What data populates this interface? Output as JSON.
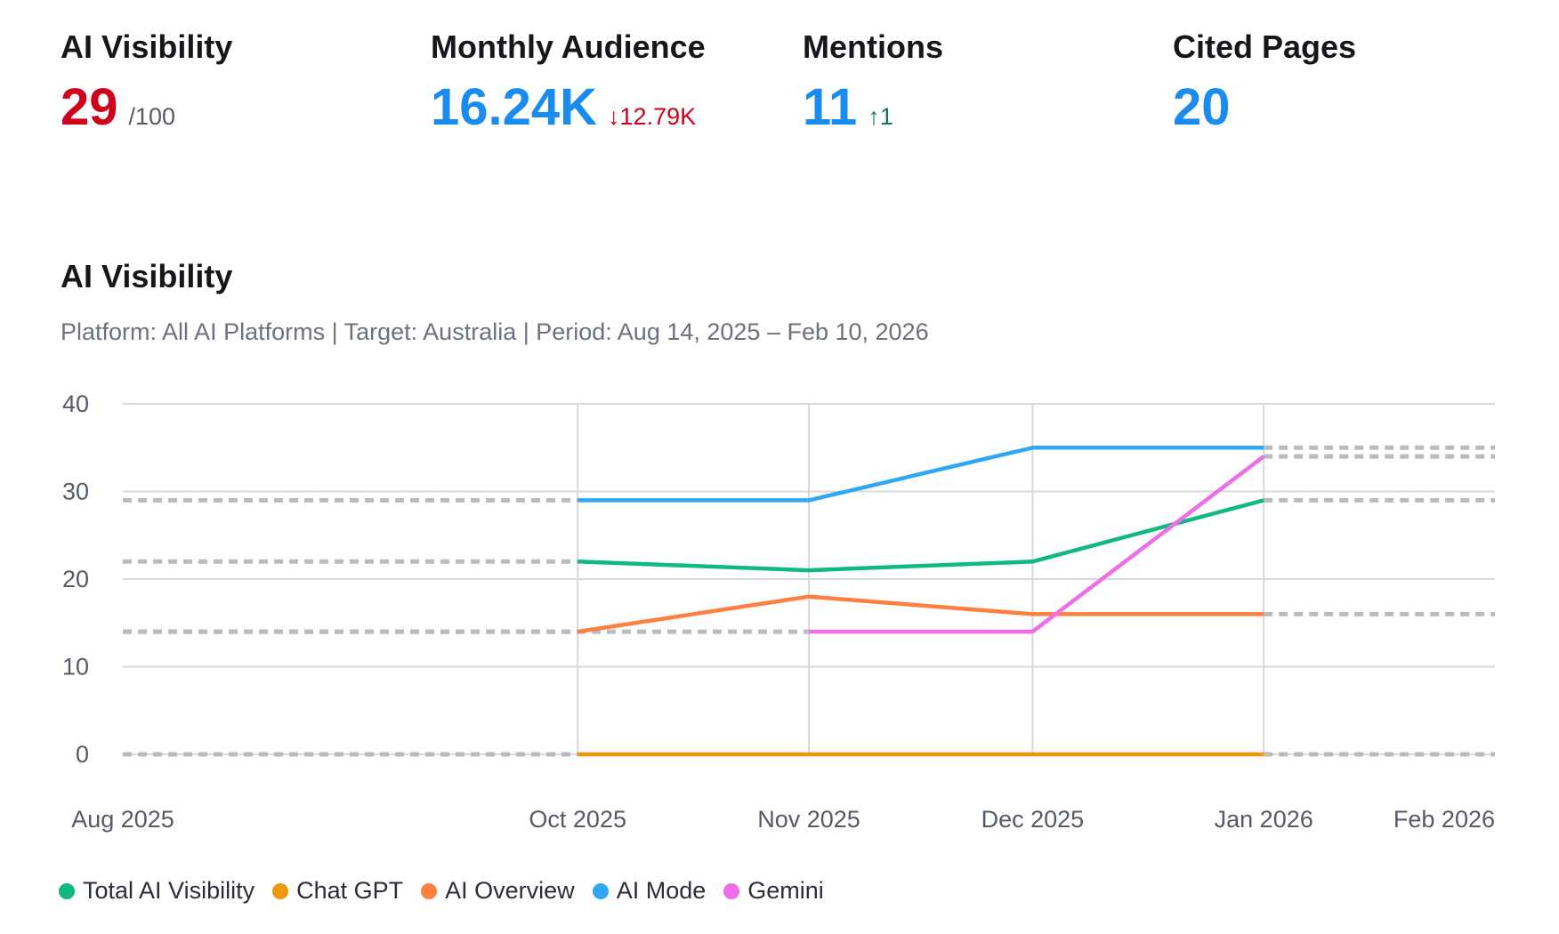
{
  "metrics": [
    {
      "label": "AI Visibility",
      "value": "29",
      "suffix": "/100",
      "delta": "",
      "value_color": "#d0021b"
    },
    {
      "label": "Monthly Audience",
      "value": "16.24K",
      "suffix": "",
      "delta": "↓12.79K",
      "delta_dir": "down",
      "value_color": "#1a8cf0"
    },
    {
      "label": "Mentions",
      "value": "11",
      "suffix": "",
      "delta": "↑1",
      "delta_dir": "up",
      "value_color": "#1a8cf0"
    },
    {
      "label": "Cited Pages",
      "value": "20",
      "suffix": "",
      "delta": "",
      "value_color": "#1a8cf0"
    }
  ],
  "section": {
    "title": "AI Visibility",
    "subtitle": "Platform: All AI Platforms | Target: Australia | Period: Aug 14, 2025 – Feb 10, 2026"
  },
  "chart_data": {
    "type": "line",
    "title": "AI Visibility",
    "ylim": [
      0,
      40
    ],
    "yticks": [
      0,
      10,
      20,
      30,
      40
    ],
    "x_ticks": [
      "Aug 2025",
      "Oct 2025",
      "Nov 2025",
      "Dec 2025",
      "Jan 2026",
      "Feb 2026"
    ],
    "x_tick_dates": [
      "2025-08-01",
      "2025-10-01",
      "2025-11-01",
      "2025-12-01",
      "2026-01-01",
      "2026-02-01"
    ],
    "grid": true,
    "legend": "bottom-left",
    "series": [
      {
        "name": "Total AI Visibility",
        "color": "#10b981",
        "x": [
          "2025-10-01",
          "2025-11-01",
          "2025-12-01",
          "2026-01-01"
        ],
        "values": [
          22,
          21,
          22,
          29
        ]
      },
      {
        "name": "Chat GPT",
        "color": "#f0960a",
        "x": [
          "2025-10-01",
          "2025-11-01",
          "2025-12-01",
          "2026-01-01"
        ],
        "values": [
          0,
          0,
          0,
          0
        ]
      },
      {
        "name": "AI Overview",
        "color": "#ff7f3f",
        "x": [
          "2025-10-01",
          "2025-11-01",
          "2025-12-01",
          "2026-01-01"
        ],
        "values": [
          14,
          18,
          16,
          16
        ]
      },
      {
        "name": "AI Mode",
        "color": "#2ea8f5",
        "x": [
          "2025-10-01",
          "2025-11-01",
          "2025-12-01",
          "2026-01-01"
        ],
        "values": [
          29,
          29,
          35,
          35
        ]
      },
      {
        "name": "Gemini",
        "color": "#ee6ee8",
        "x": [
          "2025-11-01",
          "2025-12-01",
          "2026-01-01"
        ],
        "values": [
          14,
          14,
          34
        ]
      }
    ]
  }
}
